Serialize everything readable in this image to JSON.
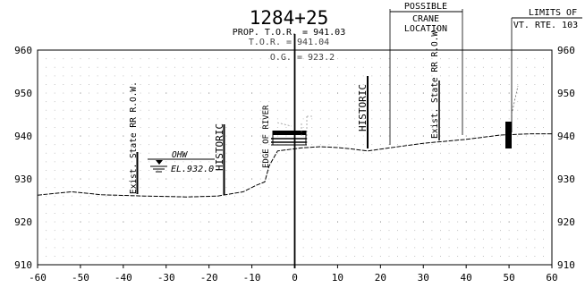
{
  "header": {
    "station": "1284+25",
    "prop_tor": "PROP. T.O.R. = 941.03",
    "tor": "T.O.R. = 941.04",
    "og": "O.G. = 923.2"
  },
  "callouts": {
    "crane_line1": "POSSIBLE",
    "crane_line2": "CRANE",
    "crane_line3": "LOCATION",
    "limits_line1": "LIMITS OF",
    "limits_line2": "VT. RTE. 103"
  },
  "vertical_labels": {
    "row_left": "Exist. State RR R.O.W.",
    "historic_left": "HISTORIC",
    "edge_of_river": "EDGE OF RIVER",
    "historic_right": "HISTORIC",
    "row_right": "Exist. State RR R.O.W."
  },
  "water": {
    "ohw": "OHW",
    "elevation": "EL.932.0"
  },
  "chart_data": {
    "type": "line",
    "x_ticks": [
      "-60",
      "-50",
      "-40",
      "-30",
      "-20",
      "-10",
      "0",
      "10",
      "20",
      "30",
      "40",
      "50",
      "60"
    ],
    "y_ticks": [
      "910",
      "920",
      "930",
      "940",
      "950",
      "960"
    ],
    "xlim": [
      -60,
      60
    ],
    "ylim": [
      910,
      960
    ],
    "grid": true,
    "series": [
      {
        "x": [
          -60,
          -52,
          -45,
          -35,
          -25,
          -18,
          -12,
          -9,
          -7,
          -6,
          -4,
          1.5,
          6,
          10,
          13,
          17,
          22,
          30,
          40,
          48,
          50,
          55,
          60
        ],
        "y": [
          926.2,
          927,
          926.3,
          926,
          925.8,
          926,
          927,
          928.5,
          929.3,
          933,
          936.5,
          937.2,
          937.5,
          937.3,
          937,
          936.5,
          937.2,
          938.3,
          939.2,
          940.2,
          940.3,
          940.5,
          940.5
        ]
      }
    ]
  }
}
